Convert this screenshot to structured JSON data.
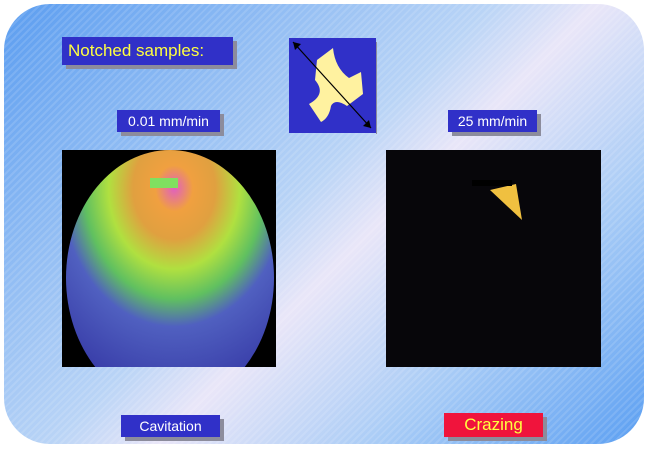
{
  "slide": {
    "title": "Notched samples:",
    "left_rate": "0.01 mm/min",
    "right_rate": "25 mm/min",
    "left_caption": "Cavitation",
    "right_caption": "Crazing"
  }
}
